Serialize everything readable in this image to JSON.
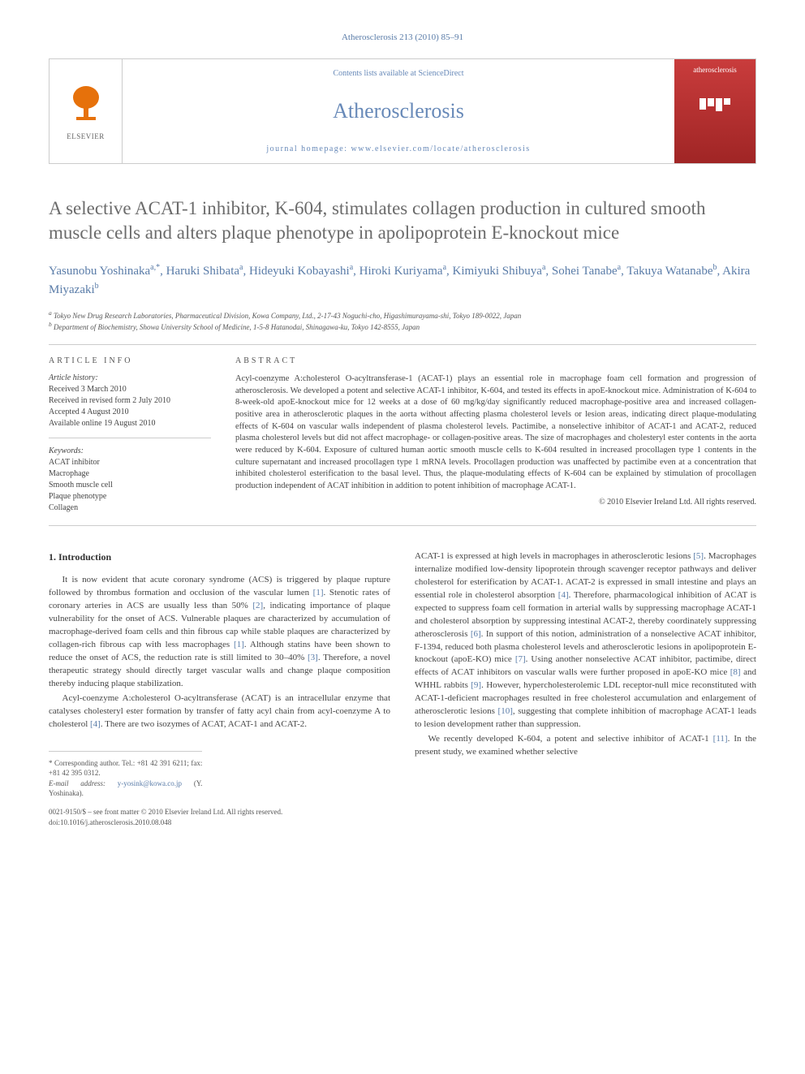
{
  "running_head": "Atherosclerosis 213 (2010) 85–91",
  "header": {
    "contents_line_pre": "Contents lists available at ",
    "contents_line_link": "ScienceDirect",
    "journal_name": "Atherosclerosis",
    "homepage_pre": "journal homepage: ",
    "homepage_url": "www.elsevier.com/locate/atherosclerosis",
    "elsevier_label": "ELSEVIER",
    "cover_label": "atherosclerosis"
  },
  "title": "A selective ACAT-1 inhibitor, K-604, stimulates collagen production in cultured smooth muscle cells and alters plaque phenotype in apolipoprotein E-knockout mice",
  "authors_html": "Yasunobu Yoshinaka<sup>a,*</sup>, Haruki Shibata<sup>a</sup>, Hideyuki Kobayashi<sup>a</sup>, Hiroki Kuriyama<sup>a</sup>, Kimiyuki Shibuya<sup>a</sup>, Sohei Tanabe<sup>a</sup>, Takuya Watanabe<sup>b</sup>, Akira Miyazaki<sup>b</sup>",
  "affiliations": {
    "a": "Tokyo New Drug Research Laboratories, Pharmaceutical Division, Kowa Company, Ltd., 2-17-43 Noguchi-cho, Higashimurayama-shi, Tokyo 189-0022, Japan",
    "b": "Department of Biochemistry, Showa University School of Medicine, 1-5-8 Hatanodai, Shinagawa-ku, Tokyo 142-8555, Japan"
  },
  "article_info": {
    "heading": "ARTICLE INFO",
    "history_head": "Article history:",
    "history": [
      "Received 3 March 2010",
      "Received in revised form 2 July 2010",
      "Accepted 4 August 2010",
      "Available online 19 August 2010"
    ],
    "keywords_head": "Keywords:",
    "keywords": [
      "ACAT inhibitor",
      "Macrophage",
      "Smooth muscle cell",
      "Plaque phenotype",
      "Collagen"
    ]
  },
  "abstract": {
    "heading": "ABSTRACT",
    "body": "Acyl-coenzyme A:cholesterol O-acyltransferase-1 (ACAT-1) plays an essential role in macrophage foam cell formation and progression of atherosclerosis. We developed a potent and selective ACAT-1 inhibitor, K-604, and tested its effects in apoE-knockout mice. Administration of K-604 to 8-week-old apoE-knockout mice for 12 weeks at a dose of 60 mg/kg/day significantly reduced macrophage-positive area and increased collagen-positive area in atherosclerotic plaques in the aorta without affecting plasma cholesterol levels or lesion areas, indicating direct plaque-modulating effects of K-604 on vascular walls independent of plasma cholesterol levels. Pactimibe, a nonselective inhibitor of ACAT-1 and ACAT-2, reduced plasma cholesterol levels but did not affect macrophage- or collagen-positive areas. The size of macrophages and cholesteryl ester contents in the aorta were reduced by K-604. Exposure of cultured human aortic smooth muscle cells to K-604 resulted in increased procollagen type 1 contents in the culture supernatant and increased procollagen type 1 mRNA levels. Procollagen production was unaffected by pactimibe even at a concentration that inhibited cholesterol esterification to the basal level. Thus, the plaque-modulating effects of K-604 can be explained by stimulation of procollagen production independent of ACAT inhibition in addition to potent inhibition of macrophage ACAT-1.",
    "copyright": "© 2010 Elsevier Ireland Ltd. All rights reserved."
  },
  "body": {
    "section_head": "1. Introduction",
    "col1_p1": "It is now evident that acute coronary syndrome (ACS) is triggered by plaque rupture followed by thrombus formation and occlusion of the vascular lumen [1]. Stenotic rates of coronary arteries in ACS are usually less than 50% [2], indicating importance of plaque vulnerability for the onset of ACS. Vulnerable plaques are characterized by accumulation of macrophage-derived foam cells and thin fibrous cap while stable plaques are characterized by collagen-rich fibrous cap with less macrophages [1]. Although statins have been shown to reduce the onset of ACS, the reduction rate is still limited to 30–40% [3]. Therefore, a novel therapeutic strategy should directly target vascular walls and change plaque composition thereby inducing plaque stabilization.",
    "col1_p2": "Acyl-coenzyme A:cholesterol O-acyltransferase (ACAT) is an intracellular enzyme that catalyses cholesteryl ester formation by transfer of fatty acyl chain from acyl-coenzyme A to cholesterol [4]. There are two isozymes of ACAT, ACAT-1 and ACAT-2.",
    "col2_p1": "ACAT-1 is expressed at high levels in macrophages in atherosclerotic lesions [5]. Macrophages internalize modified low-density lipoprotein through scavenger receptor pathways and deliver cholesterol for esterification by ACAT-1. ACAT-2 is expressed in small intestine and plays an essential role in cholesterol absorption [4]. Therefore, pharmacological inhibition of ACAT is expected to suppress foam cell formation in arterial walls by suppressing macrophage ACAT-1 and cholesterol absorption by suppressing intestinal ACAT-2, thereby coordinately suppressing atherosclerosis [6]. In support of this notion, administration of a nonselective ACAT inhibitor, F-1394, reduced both plasma cholesterol levels and atherosclerotic lesions in apolipoprotein E-knockout (apoE-KO) mice [7]. Using another nonselective ACAT inhibitor, pactimibe, direct effects of ACAT inhibitors on vascular walls were further proposed in apoE-KO mice [8] and WHHL rabbits [9]. However, hypercholesterolemic LDL receptor-null mice reconstituted with ACAT-1-deficient macrophages resulted in free cholesterol accumulation and enlargement of atherosclerotic lesions [10], suggesting that complete inhibition of macrophage ACAT-1 leads to lesion development rather than suppression.",
    "col2_p2": "We recently developed K-604, a potent and selective inhibitor of ACAT-1 [11]. In the present study, we examined whether selective"
  },
  "footer": {
    "corr_label": "* Corresponding author. Tel.: +81 42 391 6211; fax: +81 42 395 0312.",
    "email_label": "E-mail address:",
    "email": "y-yosink@kowa.co.jp",
    "email_name": "(Y. Yoshinaka).",
    "issn_line": "0021-9150/$ – see front matter © 2010 Elsevier Ireland Ltd. All rights reserved.",
    "doi": "doi:10.1016/j.atherosclerosis.2010.08.048"
  },
  "colors": {
    "link_blue": "#5a7ca8",
    "title_gray": "#6b6b6b",
    "elsevier_orange": "#e6710b",
    "cover_red": "#c93c3c"
  }
}
